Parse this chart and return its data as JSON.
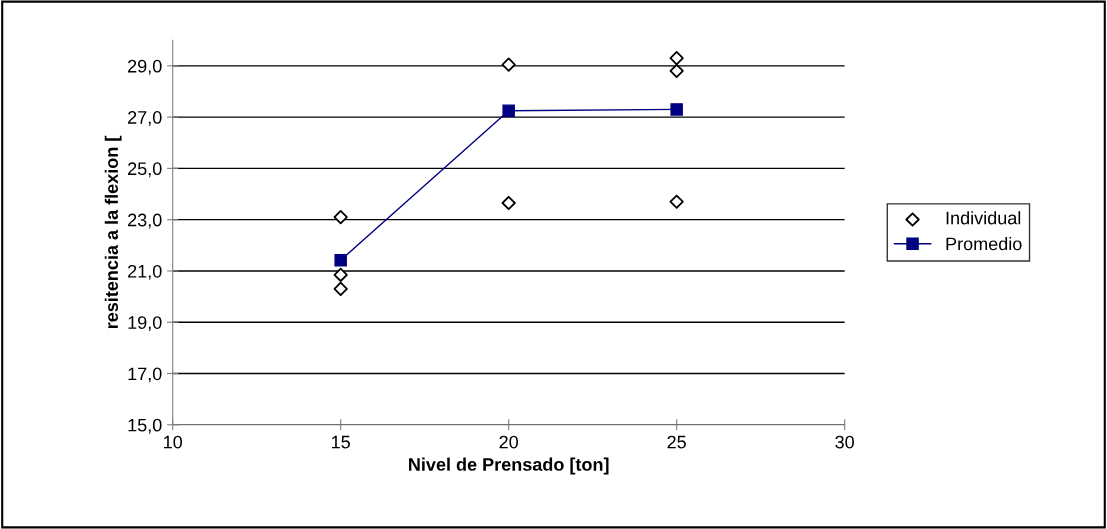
{
  "chart_data": {
    "type": "scatter",
    "xlabel": "Nivel de Prensado [ton]",
    "ylabel": "resitencia a la flexion [",
    "xlim": [
      10,
      30
    ],
    "xticks": [
      10,
      15,
      20,
      25,
      30
    ],
    "ylim": [
      15,
      30
    ],
    "yticks": [
      {
        "value": 15,
        "label": "15,0"
      },
      {
        "value": 17,
        "label": "17,0"
      },
      {
        "value": 19,
        "label": "19,0"
      },
      {
        "value": 21,
        "label": "21,0"
      },
      {
        "value": 23,
        "label": "23,0"
      },
      {
        "value": 25,
        "label": "25,0"
      },
      {
        "value": 27,
        "label": "27,0"
      },
      {
        "value": 29,
        "label": "29,0"
      }
    ],
    "grid": "y",
    "legend": "right",
    "series": [
      {
        "name": "Individual",
        "marker": "diamond",
        "color": "#000000",
        "x": [
          15,
          15,
          15,
          20,
          20,
          25,
          25,
          25
        ],
        "values": [
          23.1,
          20.85,
          20.3,
          29.05,
          23.65,
          29.3,
          28.8,
          23.7
        ]
      },
      {
        "name": "Promedio",
        "type": "line",
        "marker": "square",
        "color": "#000080",
        "x": [
          15,
          20,
          25
        ],
        "values": [
          21.42,
          27.25,
          27.3
        ]
      }
    ]
  }
}
